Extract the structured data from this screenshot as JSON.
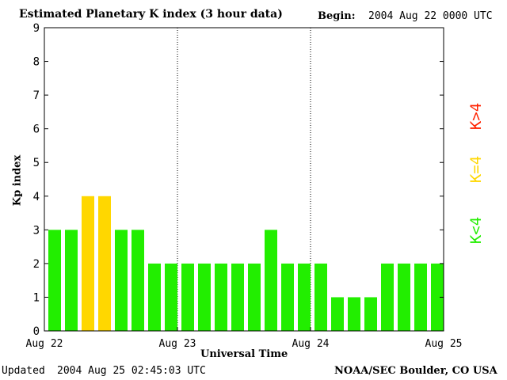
{
  "chart_data": {
    "type": "bar",
    "title": "Estimated Planetary K index (3 hour data)",
    "begin_label": "Begin:",
    "begin_value": "2004 Aug 22 0000 UTC",
    "xlabel": "Universal Time",
    "ylabel": "Kp index",
    "ylim": [
      0,
      9
    ],
    "yticks": [
      "0",
      "1",
      "2",
      "3",
      "4",
      "5",
      "6",
      "7",
      "8",
      "9"
    ],
    "xticks": [
      "Aug 22",
      "Aug 23",
      "Aug 24",
      "Aug 25"
    ],
    "grid": "dotted vertical lines at day boundaries",
    "values": [
      3,
      3,
      4,
      4,
      3,
      3,
      2,
      2,
      2,
      2,
      2,
      2,
      2,
      3,
      2,
      2,
      2,
      1,
      1,
      1,
      2,
      2,
      2,
      2
    ],
    "legend": [
      {
        "label": "K<4",
        "color": "#22ee00"
      },
      {
        "label": "K=4",
        "color": "#ffd700"
      },
      {
        "label": "K>4",
        "color": "#ff2200"
      }
    ],
    "legend_position": "right, vertical"
  },
  "footer": {
    "updated_label": "Updated",
    "updated_value": "2004 Aug 25 02:45:03 UTC",
    "org": "NOAA/SEC Boulder, CO USA"
  }
}
